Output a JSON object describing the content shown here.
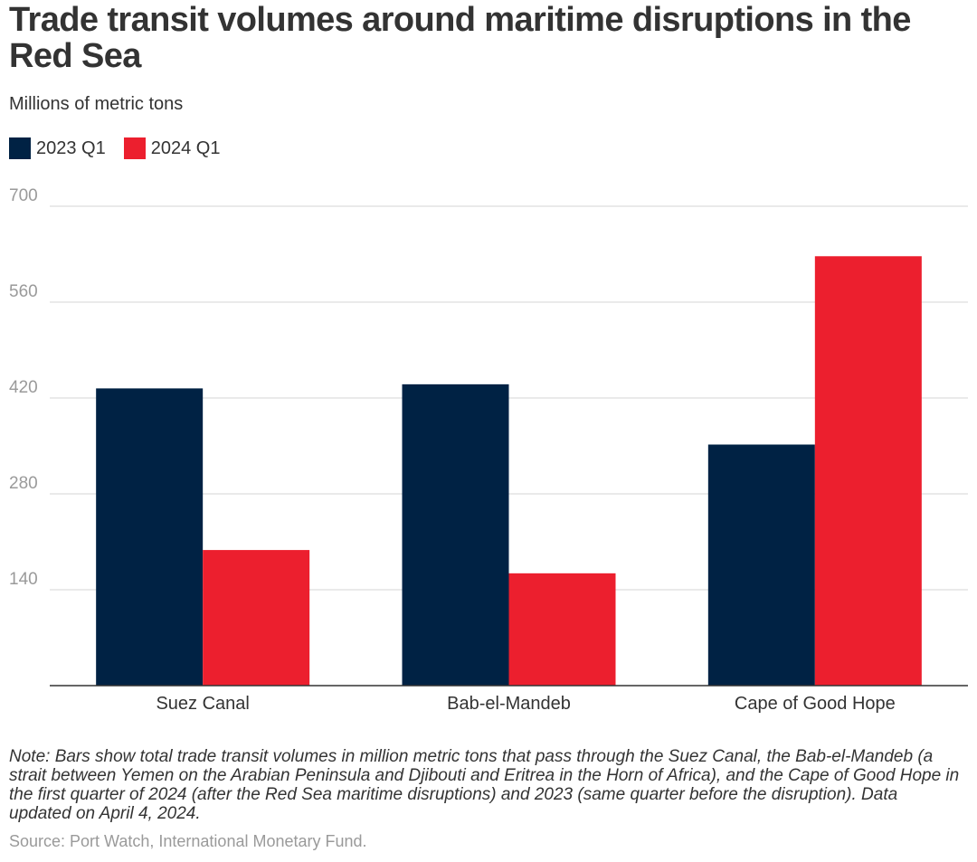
{
  "header": {
    "title": "Trade transit volumes around maritime disruptions in the Red Sea",
    "subtitle": "Millions of metric tons"
  },
  "legend": [
    {
      "label": "2023 Q1",
      "color": "#002244"
    },
    {
      "label": "2024 Q1",
      "color": "#ec1f2e"
    }
  ],
  "chart_data": {
    "type": "bar",
    "title": "Trade transit volumes around maritime disruptions in the Red Sea",
    "subtitle": "Millions of metric tons",
    "xlabel": "",
    "ylabel": "Millions of metric tons",
    "categories": [
      "Suez Canal",
      "Bab-el-Mandeb",
      "Cape of Good Hope"
    ],
    "series": [
      {
        "name": "2023 Q1",
        "color": "#002244",
        "values": [
          434,
          440,
          352
        ]
      },
      {
        "name": "2024 Q1",
        "color": "#ec1f2e",
        "values": [
          198,
          164,
          627
        ]
      }
    ],
    "ylim": [
      0,
      700
    ],
    "yticks": [
      "140",
      "280",
      "420",
      "560",
      "700"
    ],
    "grid": true,
    "legend_position": "top-left"
  },
  "footer": {
    "note": "Note: Bars show total trade transit volumes in million metric tons that pass through the Suez Canal, the Bab-el-Mandeb (a strait between Yemen on the Arabian Peninsula and Djibouti and Eritrea in the Horn of Africa), and the Cape of Good Hope in the first quarter of 2024 (after the Red Sea maritime disruptions) and 2023 (same quarter before the disruption). Data updated on April 4, 2024.",
    "source": "Source: Port Watch, International Monetary Fund."
  }
}
